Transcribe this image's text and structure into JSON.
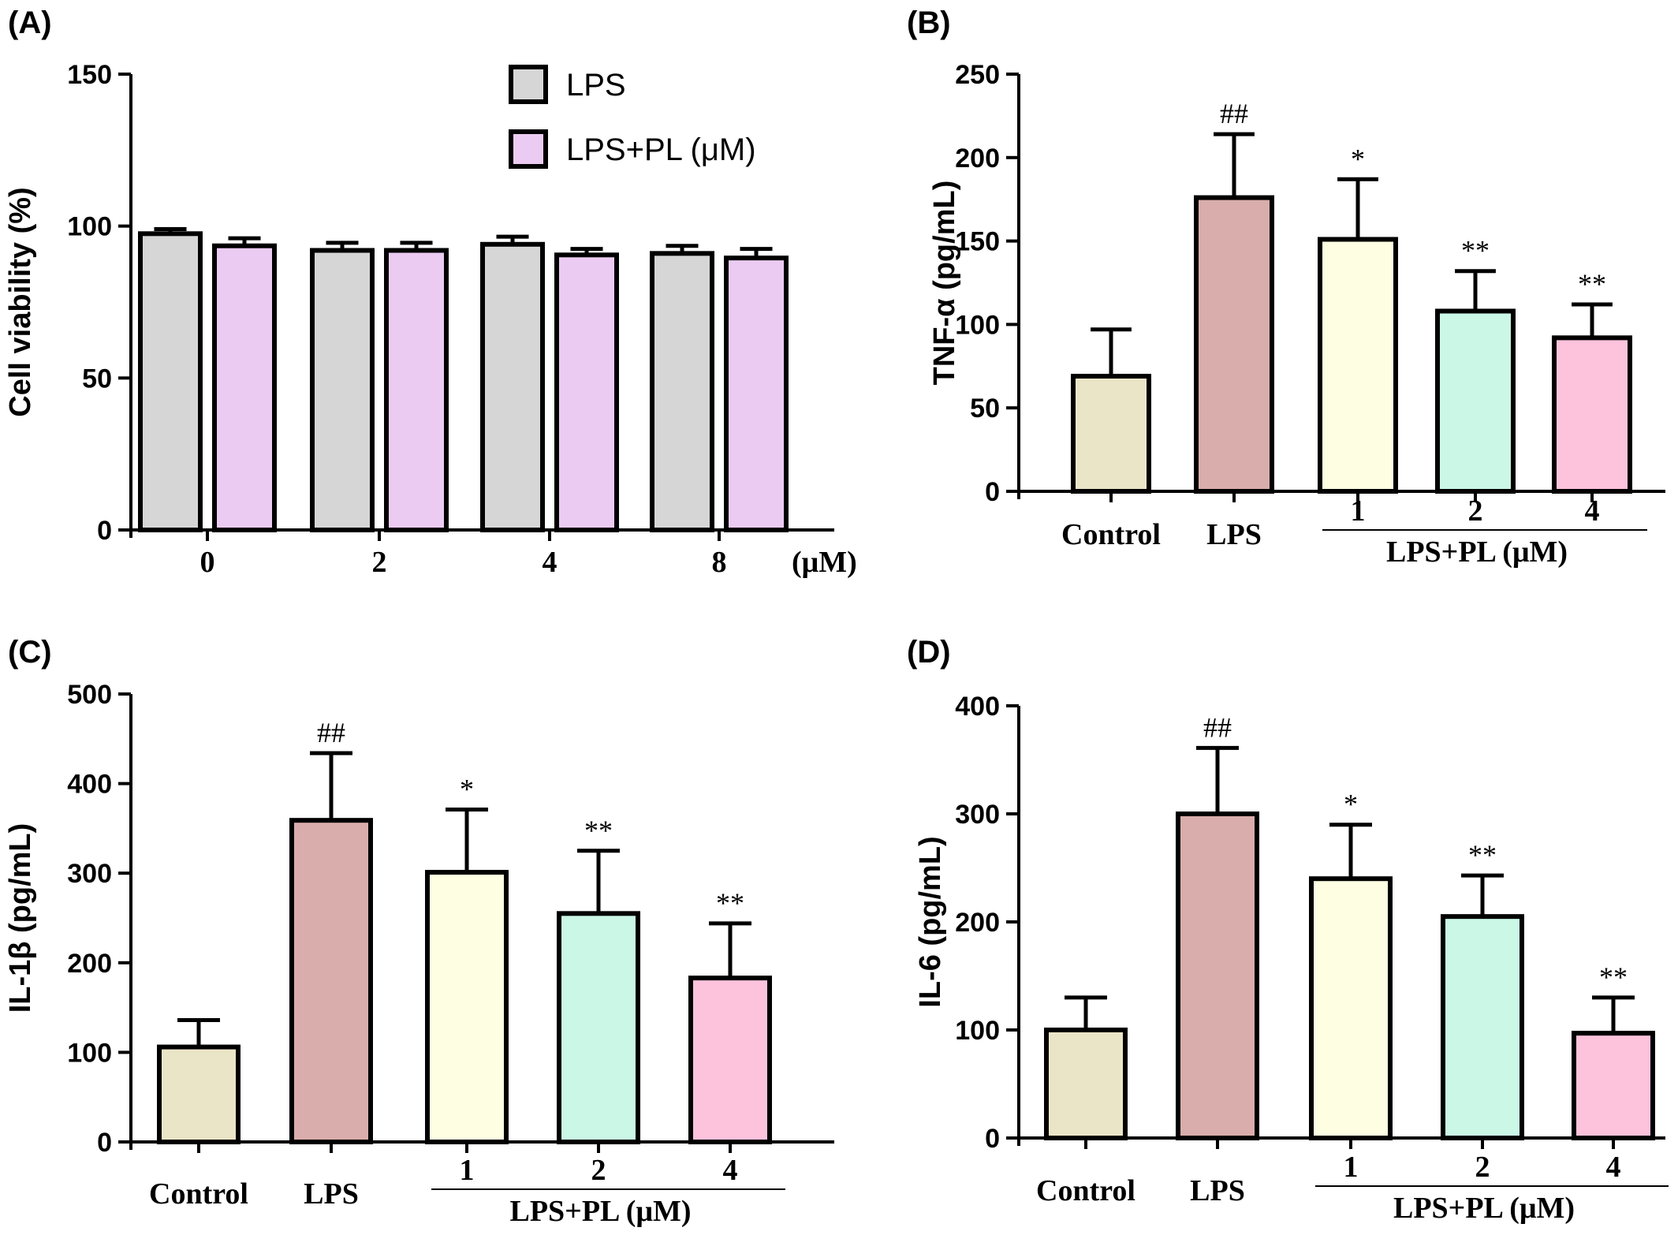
{
  "chart_data": [
    {
      "id": "A",
      "panel_label": "(A)",
      "type": "bar",
      "title": "",
      "ylabel": "Cell viability (%)",
      "xlabel": "",
      "x_unit": "(μM)",
      "categories": [
        "0",
        "2",
        "4",
        "8"
      ],
      "series": [
        {
          "name": "LPS",
          "color": "#d6d6d6",
          "values": [
            97.5,
            92,
            94,
            91
          ],
          "errors": [
            1.5,
            2.5,
            2.5,
            2.5
          ]
        },
        {
          "name": "LPS+PL (μM)",
          "color": "#eccbf3",
          "values": [
            93.5,
            92,
            90.5,
            89.5
          ],
          "errors": [
            2.5,
            2.5,
            2.0,
            3.0
          ]
        }
      ],
      "ylim": [
        0,
        150
      ],
      "yticks": [
        "0",
        "50",
        "100",
        "150"
      ],
      "legend": "top-center",
      "grid": false
    },
    {
      "id": "B",
      "panel_label": "(B)",
      "type": "bar",
      "title": "",
      "ylabel": "TNF-α (pg/mL)",
      "categories": [
        "Control",
        "LPS",
        "1",
        "2",
        "4"
      ],
      "group_label": "LPS+PL (μM)",
      "values": [
        69,
        176,
        151,
        108,
        92
      ],
      "errors": [
        28,
        38,
        36,
        24,
        20
      ],
      "colors": [
        "#ebe5c7",
        "#d9adab",
        "#fefee2",
        "#cbf7e6",
        "#fdc2dc"
      ],
      "significance": [
        "",
        "##",
        "*",
        "**",
        "**"
      ],
      "ylim": [
        0,
        250
      ],
      "yticks": [
        "0",
        "50",
        "100",
        "150",
        "200",
        "250"
      ],
      "grid": false
    },
    {
      "id": "C",
      "panel_label": "(C)",
      "type": "bar",
      "title": "",
      "ylabel": "IL-1β (pg/mL)",
      "categories": [
        "Control",
        "LPS",
        "1",
        "2",
        "4"
      ],
      "group_label": "LPS+PL (μM)",
      "values": [
        106,
        359,
        301,
        255,
        183
      ],
      "errors": [
        30,
        75,
        70,
        70,
        61
      ],
      "colors": [
        "#ebe5c7",
        "#d9adab",
        "#fefee2",
        "#cbf7e6",
        "#fdc2dc"
      ],
      "significance": [
        "",
        "##",
        "*",
        "**",
        "**"
      ],
      "ylim": [
        0,
        500
      ],
      "yticks": [
        "0",
        "100",
        "200",
        "300",
        "400",
        "500"
      ],
      "grid": false
    },
    {
      "id": "D",
      "panel_label": "(D)",
      "type": "bar",
      "title": "",
      "ylabel": "IL-6 (pg/mL)",
      "categories": [
        "Control",
        "LPS",
        "1",
        "2",
        "4"
      ],
      "group_label": "LPS+PL (μM)",
      "values": [
        100,
        300,
        240,
        205,
        97
      ],
      "errors": [
        30,
        61,
        50,
        38,
        33
      ],
      "colors": [
        "#ebe5c7",
        "#d9adab",
        "#fefee2",
        "#cbf7e6",
        "#fdc2dc"
      ],
      "significance": [
        "",
        "##",
        "*",
        "**",
        "**"
      ],
      "ylim": [
        0,
        400
      ],
      "yticks": [
        "0",
        "100",
        "200",
        "300",
        "400"
      ],
      "grid": false
    }
  ]
}
